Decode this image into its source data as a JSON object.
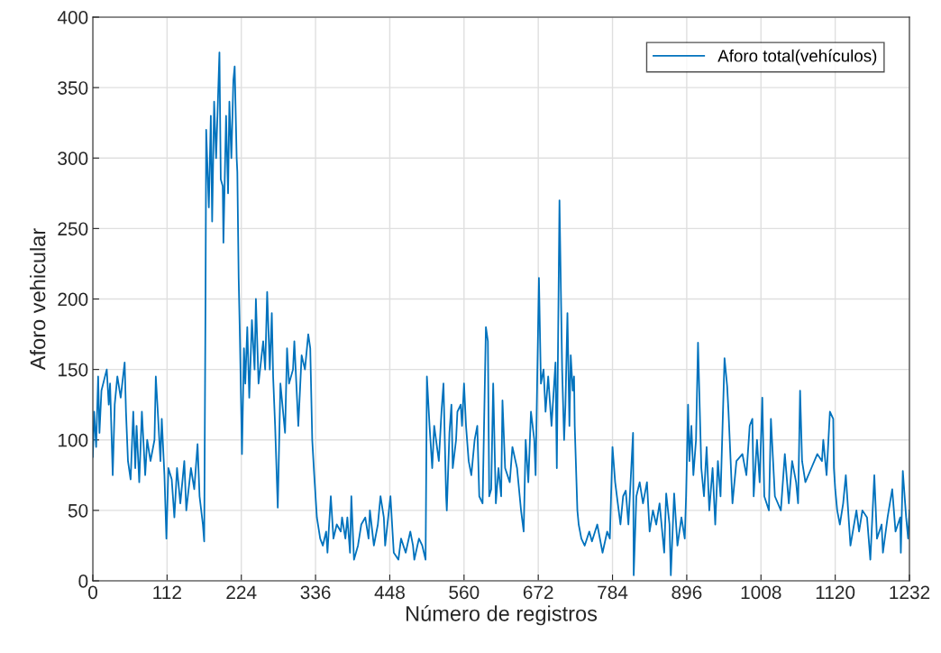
{
  "chart_data": {
    "type": "line",
    "xlabel": "Número de registros",
    "ylabel": "Aforo vehicular",
    "legend": "top right",
    "grid": true,
    "line_style": "solid",
    "xlim": [
      0,
      1232
    ],
    "xticks": [
      0,
      112,
      224,
      336,
      448,
      560,
      672,
      784,
      896,
      1008,
      1120,
      1232
    ],
    "ylim": [
      0,
      400
    ],
    "yticks": [
      0,
      50,
      100,
      150,
      200,
      250,
      300,
      350,
      400
    ],
    "series": [
      {
        "name": "Aforo total(vehículos)",
        "color": "#0072bd",
        "x": [
          0,
          2,
          5,
          8,
          10,
          13,
          21,
          24,
          26,
          30,
          33,
          37,
          42,
          48,
          50,
          53,
          57,
          61,
          64,
          66,
          70,
          74,
          79,
          82,
          87,
          93,
          95,
          98,
          102,
          104,
          108,
          111,
          114,
          119,
          123,
          127,
          132,
          138,
          141,
          148,
          153,
          158,
          161,
          166,
          168,
          170,
          171,
          175,
          178,
          180,
          183,
          186,
          191,
          193,
          196,
          197,
          201,
          204,
          206,
          209,
          212,
          214,
          217,
          218,
          220,
          222,
          225,
          228,
          230,
          233,
          236,
          240,
          244,
          246,
          250,
          257,
          260,
          263,
          267,
          270,
          272,
          275,
          279,
          283,
          287,
          290,
          293,
          296,
          302,
          304,
          310,
          315,
          320,
          325,
          328,
          331,
          334,
          338,
          343,
          347,
          352,
          354,
          359,
          363,
          368,
          374,
          376,
          381,
          384,
          388,
          390,
          394,
          400,
          405,
          411,
          416,
          418,
          424,
          430,
          434,
          439,
          441,
          449,
          454,
          461,
          465,
          472,
          479,
          483,
          485,
          492,
          497,
          502,
          504,
          508,
          512,
          515,
          522,
          526,
          529,
          533,
          534,
          538,
          541,
          543,
          548,
          550,
          555,
          557,
          560,
          563,
          567,
          571,
          576,
          580,
          583,
          588,
          593,
          596,
          598,
          601,
          604,
          608,
          612,
          616,
          618,
          622,
          629,
          633,
          640,
          644,
          646,
          650,
          653,
          657,
          661,
          666,
          668,
          673,
          676,
          680,
          683,
          687,
          692,
          698,
          700,
          704,
          708,
          711,
          713,
          716,
          719,
          721,
          724,
          726,
          727,
          731,
          733,
          737,
          742,
          749,
          753,
          761,
          769,
          776,
          780,
          784,
          788,
          792,
          796,
          800,
          804,
          808,
          815,
          816,
          820,
          825,
          830,
          836,
          840,
          845,
          850,
          855,
          862,
          865,
          870,
          872,
          877,
          882,
          888,
          893,
          895,
          898,
          900,
          903,
          906,
          910,
          913,
          918,
          922,
          926,
          930,
          935,
          939,
          943,
          947,
          953,
          957,
          959,
          965,
          971,
          980,
          986,
          991,
          995,
          997,
          1002,
          1006,
          1010,
          1013,
          1020,
          1023,
          1029,
          1038,
          1044,
          1050,
          1055,
          1061,
          1064,
          1067,
          1070,
          1075,
          1084,
          1093,
          1100,
          1102,
          1107,
          1112,
          1117,
          1118,
          1120,
          1123,
          1127,
          1132,
          1136,
          1143,
          1152,
          1156,
          1161,
          1168,
          1173,
          1179,
          1183,
          1190,
          1192,
          1199,
          1206,
          1211,
          1218,
          1219,
          1222,
          1227,
          1230,
          1232
        ],
        "values": [
          88,
          120,
          95,
          145,
          105,
          135,
          150,
          125,
          140,
          75,
          125,
          145,
          130,
          155,
          120,
          85,
          72,
          120,
          80,
          110,
          70,
          120,
          75,
          100,
          85,
          100,
          145,
          120,
          85,
          115,
          75,
          30,
          80,
          72,
          45,
          80,
          55,
          85,
          50,
          80,
          65,
          97,
          60,
          40,
          28,
          200,
          320,
          265,
          330,
          255,
          340,
          300,
          375,
          285,
          280,
          240,
          330,
          275,
          340,
          300,
          355,
          365,
          300,
          290,
          215,
          170,
          90,
          165,
          140,
          180,
          130,
          185,
          150,
          200,
          140,
          170,
          150,
          205,
          150,
          190,
          145,
          110,
          52,
          140,
          120,
          105,
          165,
          140,
          150,
          170,
          110,
          160,
          150,
          175,
          165,
          100,
          75,
          45,
          30,
          25,
          35,
          20,
          60,
          30,
          40,
          35,
          45,
          30,
          45,
          20,
          60,
          15,
          25,
          40,
          45,
          30,
          50,
          25,
          40,
          60,
          45,
          25,
          60,
          20,
          15,
          30,
          20,
          35,
          25,
          15,
          30,
          25,
          15,
          145,
          110,
          80,
          110,
          85,
          120,
          140,
          60,
          50,
          105,
          125,
          80,
          100,
          120,
          125,
          110,
          140,
          110,
          85,
          75,
          100,
          110,
          60,
          55,
          180,
          170,
          60,
          65,
          140,
          55,
          80,
          60,
          128,
          80,
          70,
          95,
          80,
          60,
          50,
          35,
          100,
          70,
          120,
          100,
          75,
          215,
          140,
          150,
          120,
          145,
          110,
          155,
          80,
          270,
          150,
          100,
          125,
          190,
          110,
          160,
          135,
          145,
          110,
          50,
          40,
          30,
          25,
          35,
          28,
          40,
          20,
          35,
          30,
          95,
          70,
          55,
          40,
          60,
          64,
          40,
          105,
          4,
          60,
          70,
          55,
          70,
          35,
          50,
          40,
          55,
          20,
          62,
          40,
          4,
          62,
          25,
          45,
          30,
          60,
          125,
          85,
          110,
          75,
          100,
          169,
          80,
          60,
          95,
          50,
          80,
          40,
          85,
          60,
          158,
          138,
          120,
          55,
          85,
          90,
          75,
          110,
          115,
          60,
          100,
          70,
          130,
          60,
          50,
          115,
          60,
          50,
          90,
          55,
          85,
          70,
          55,
          135,
          85,
          70,
          80,
          90,
          85,
          100,
          75,
          120,
          115,
          80,
          65,
          50,
          40,
          55,
          75,
          25,
          50,
          35,
          50,
          45,
          15,
          75,
          30,
          40,
          20,
          45,
          65,
          35,
          45,
          20,
          78,
          45,
          30,
          50
        ]
      }
    ]
  }
}
